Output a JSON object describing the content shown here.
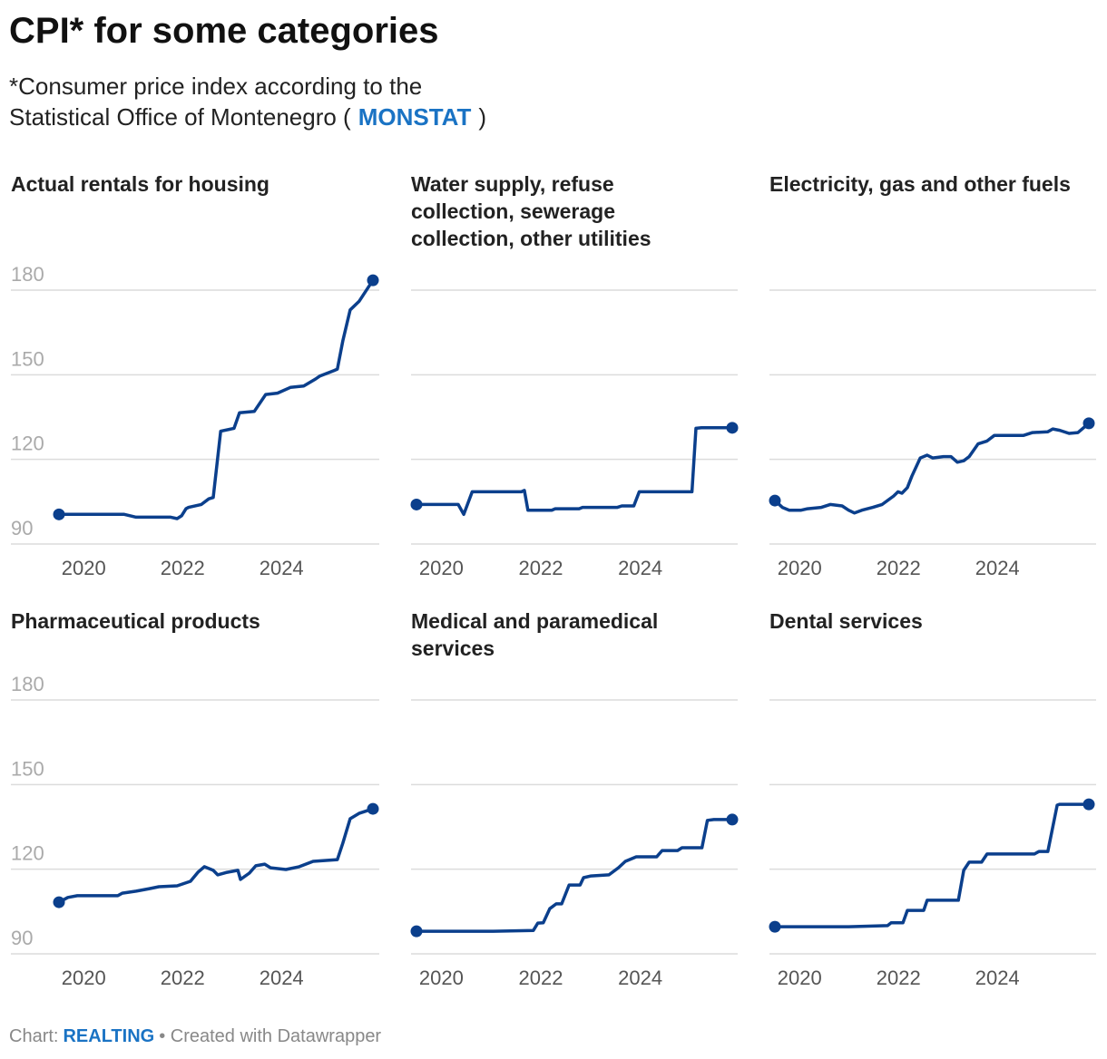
{
  "header": {
    "title": "CPI* for some categories",
    "subtitle_line1": "*Consumer price index according to the",
    "subtitle_line2": "Statistical Office of Montenegro (",
    "link": "MONSTAT",
    "subtitle_end": ")"
  },
  "footer": {
    "prefix": "Chart:",
    "source": "REALTING",
    "suffix": "• Created with Datawrapper"
  },
  "chart_data": [
    {
      "type": "line",
      "title": "Actual rentals for housing",
      "color": "#0b3f8c",
      "xlim": [
        2019.5,
        2025.85
      ],
      "ylim": [
        90,
        180
      ],
      "xticks": [
        2020,
        2022,
        2024
      ],
      "yticks": [
        90,
        120,
        150,
        180
      ],
      "x": [
        2019.5,
        2020.82,
        2021.06,
        2021.76,
        2021.89,
        2021.98,
        2022.07,
        2022.12,
        2022.38,
        2022.53,
        2022.62,
        2022.77,
        2023.04,
        2023.15,
        2023.45,
        2023.68,
        2023.92,
        2024.18,
        2024.45,
        2024.69,
        2024.77,
        2025.06,
        2025.13,
        2025.24,
        2025.39,
        2025.57,
        2025.85
      ],
      "values": [
        100.5,
        100.5,
        99.5,
        99.5,
        99,
        100,
        102.5,
        103,
        104,
        106,
        106.5,
        130,
        131,
        136.5,
        137,
        143,
        143.5,
        145.5,
        146,
        148.5,
        149.5,
        151.5,
        152,
        162,
        173,
        176,
        183.5
      ]
    },
    {
      "type": "line",
      "title": "Water supply, refuse collection, sewerage collection, other utilities",
      "color": "#0b3f8c",
      "xlim": [
        2019.5,
        2025.85
      ],
      "ylim": [
        90,
        180
      ],
      "xticks": [
        2020,
        2022,
        2024
      ],
      "yticks": [
        90,
        120,
        150,
        180
      ],
      "x": [
        2019.5,
        2020.34,
        2020.45,
        2020.62,
        2021.61,
        2021.67,
        2021.74,
        2022.22,
        2022.29,
        2022.77,
        2022.84,
        2023.54,
        2023.63,
        2023.87,
        2023.98,
        2025.04,
        2025.12,
        2025.23,
        2025.85
      ],
      "values": [
        104,
        104,
        100.5,
        108.5,
        108.5,
        109,
        102,
        102,
        102.5,
        102.5,
        103,
        103,
        103.5,
        103.5,
        108.5,
        108.5,
        131,
        131.2,
        131.2
      ]
    },
    {
      "type": "line",
      "title": "Electricity, gas and other fuels",
      "color": "#0b3f8c",
      "xlim": [
        2019.5,
        2025.85
      ],
      "ylim": [
        90,
        180
      ],
      "xticks": [
        2020,
        2022,
        2024
      ],
      "yticks": [
        90,
        120,
        150,
        180
      ],
      "x": [
        2019.5,
        2019.65,
        2019.79,
        2020.03,
        2020.16,
        2020.44,
        2020.62,
        2020.86,
        2020.99,
        2021.11,
        2021.26,
        2021.48,
        2021.67,
        2021.9,
        2021.99,
        2022.07,
        2022.18,
        2022.27,
        2022.44,
        2022.58,
        2022.69,
        2022.91,
        2023.06,
        2023.19,
        2023.32,
        2023.43,
        2023.61,
        2023.79,
        2023.94,
        2024.2,
        2024.53,
        2024.71,
        2025.02,
        2025.12,
        2025.26,
        2025.45,
        2025.63,
        2025.85
      ],
      "values": [
        105.4,
        103,
        102,
        102,
        102.5,
        103,
        104,
        103.5,
        102,
        101,
        102,
        103,
        104,
        107,
        108.5,
        108,
        110,
        114,
        120.5,
        121.5,
        120.5,
        121,
        121,
        119,
        119.5,
        121,
        125.5,
        126.5,
        128.5,
        128.5,
        128.5,
        129.5,
        129.8,
        130.8,
        130.3,
        129.2,
        129.5,
        132.8
      ]
    },
    {
      "type": "line",
      "title": "Pharmaceutical products",
      "color": "#0b3f8c",
      "xlim": [
        2019.5,
        2025.85
      ],
      "ylim": [
        90,
        180
      ],
      "xticks": [
        2020,
        2022,
        2024
      ],
      "yticks": [
        90,
        120,
        150,
        180
      ],
      "x": [
        2019.5,
        2019.68,
        2019.87,
        2020.69,
        2020.78,
        2021.06,
        2021.33,
        2021.52,
        2021.89,
        2022.16,
        2022.31,
        2022.44,
        2022.62,
        2022.71,
        2022.9,
        2023.12,
        2023.17,
        2023.35,
        2023.48,
        2023.66,
        2023.78,
        2024.09,
        2024.36,
        2024.64,
        2025.13,
        2025.24,
        2025.39,
        2025.57,
        2025.85
      ],
      "values": [
        108.3,
        110,
        110.6,
        110.6,
        111.5,
        112.2,
        113.1,
        113.8,
        114.1,
        115.7,
        118.9,
        120.9,
        119.6,
        118,
        118.9,
        119.6,
        116.4,
        118.6,
        121.2,
        121.8,
        120.5,
        119.9,
        120.9,
        122.8,
        123.4,
        129.2,
        137.9,
        139.8,
        141.4
      ]
    },
    {
      "type": "line",
      "title": "Medical and paramedical services",
      "color": "#0b3f8c",
      "xlim": [
        2019.5,
        2025.85
      ],
      "ylim": [
        90,
        180
      ],
      "xticks": [
        2020,
        2022,
        2024
      ],
      "yticks": [
        90,
        120,
        150,
        180
      ],
      "x": [
        2019.5,
        2021.04,
        2021.85,
        2021.94,
        2022.05,
        2022.18,
        2022.31,
        2022.42,
        2022.57,
        2022.79,
        2022.86,
        2023.01,
        2023.37,
        2023.56,
        2023.7,
        2023.92,
        2024.33,
        2024.44,
        2024.75,
        2024.84,
        2025.24,
        2025.35,
        2025.48,
        2025.85
      ],
      "values": [
        98,
        98,
        98.3,
        100.9,
        101,
        106,
        107.7,
        107.7,
        114.4,
        114.4,
        117,
        117.6,
        118,
        120.5,
        122.8,
        124.4,
        124.4,
        126.6,
        126.6,
        127.6,
        127.6,
        137.3,
        137.6,
        137.6
      ]
    },
    {
      "type": "line",
      "title": "Dental services",
      "color": "#0b3f8c",
      "xlim": [
        2019.5,
        2025.85
      ],
      "ylim": [
        90,
        180
      ],
      "xticks": [
        2020,
        2022,
        2024
      ],
      "yticks": [
        90,
        120,
        150,
        180
      ],
      "x": [
        2019.5,
        2020.99,
        2021.78,
        2021.85,
        2022.09,
        2022.18,
        2022.51,
        2022.58,
        2023.21,
        2023.32,
        2023.43,
        2023.68,
        2023.79,
        2024.75,
        2024.84,
        2025.02,
        2025.21,
        2025.26,
        2025.85
      ],
      "values": [
        99.6,
        99.6,
        100,
        101,
        101,
        105.4,
        105.4,
        109,
        109,
        119.6,
        122.5,
        122.5,
        125.4,
        125.4,
        126.3,
        126.3,
        142.7,
        143,
        143
      ]
    }
  ]
}
